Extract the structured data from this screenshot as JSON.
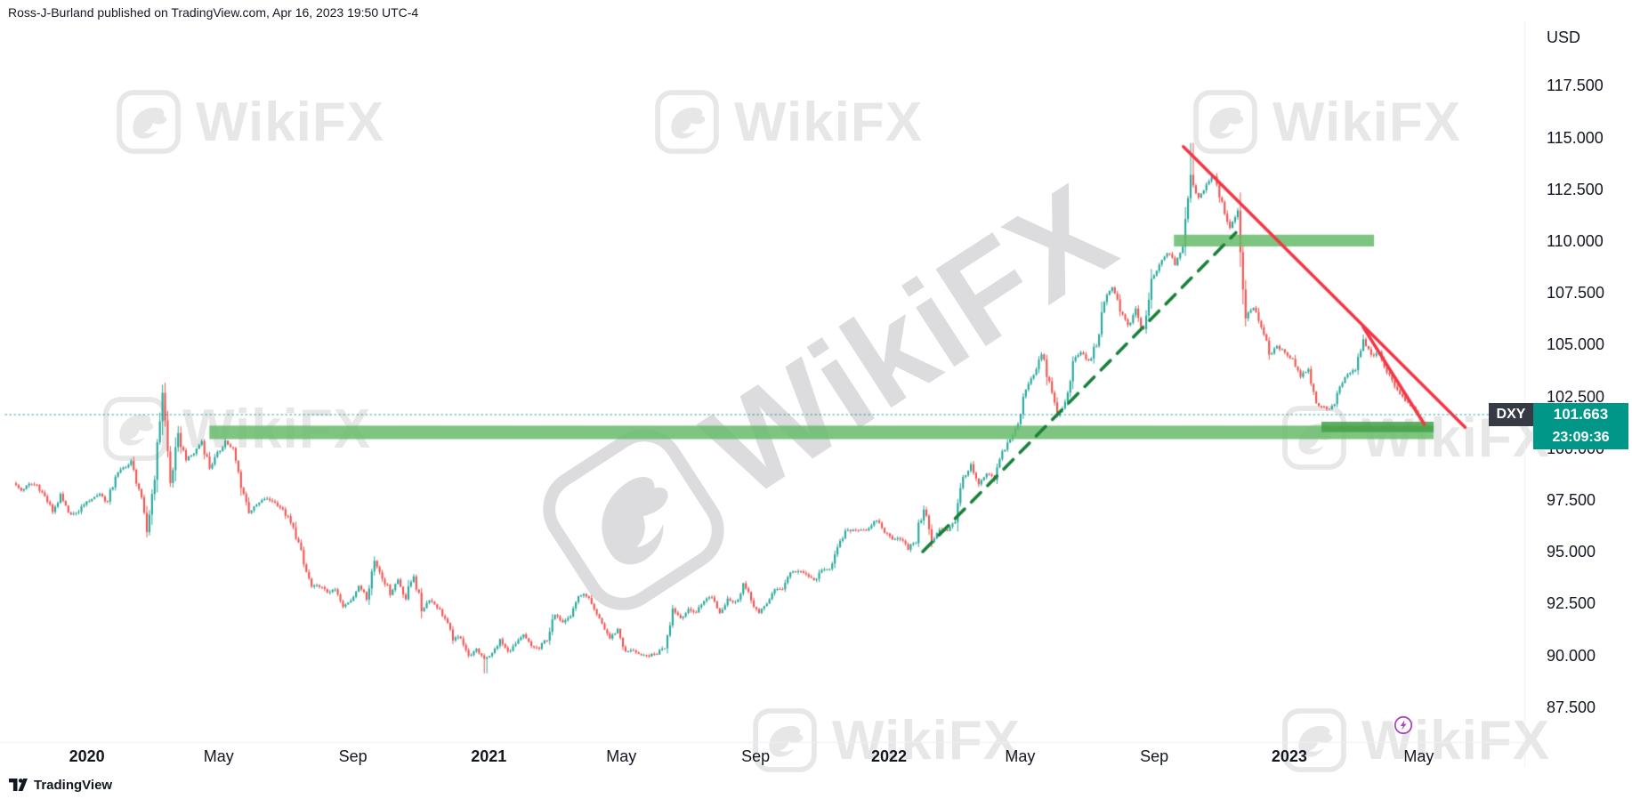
{
  "meta": {
    "attribution": "Ross-J-Burland published on TradingView.com, Apr 16, 2023 19:50 UTC-4",
    "watermark_text": "WikiFX"
  },
  "logo": {
    "label": "TradingView"
  },
  "chart_data": {
    "type": "candlestick",
    "symbol": "DXY",
    "currency_label": "USD",
    "last_price": "101.663",
    "countdown": "23:09:36",
    "timeframe_note": "weekly closes, Nov 2019 - Apr 2023 (approximate, read from chart)",
    "y_ticks": [
      {
        "label": "117.500",
        "value": 117.5
      },
      {
        "label": "115.000",
        "value": 115.0
      },
      {
        "label": "112.500",
        "value": 112.5
      },
      {
        "label": "110.000",
        "value": 110.0
      },
      {
        "label": "107.500",
        "value": 107.5
      },
      {
        "label": "105.000",
        "value": 105.0
      },
      {
        "label": "102.500",
        "value": 102.5
      },
      {
        "label": "100.000",
        "value": 100.0
      },
      {
        "label": "97.500",
        "value": 97.5
      },
      {
        "label": "95.000",
        "value": 95.0
      },
      {
        "label": "92.500",
        "value": 92.5
      },
      {
        "label": "90.000",
        "value": 90.0
      },
      {
        "label": "87.500",
        "value": 87.5
      }
    ],
    "x_ticks": [
      {
        "label": "2020",
        "week": 9.2,
        "major": true
      },
      {
        "label": "May",
        "week": 26.0,
        "major": false
      },
      {
        "label": "Sep",
        "week": 43.1,
        "major": false
      },
      {
        "label": "2021",
        "week": 60.4,
        "major": true
      },
      {
        "label": "May",
        "week": 77.3,
        "major": false
      },
      {
        "label": "Sep",
        "week": 94.4,
        "major": false
      },
      {
        "label": "2022",
        "week": 111.4,
        "major": true
      },
      {
        "label": "May",
        "week": 128.1,
        "major": false
      },
      {
        "label": "Sep",
        "week": 145.2,
        "major": false
      },
      {
        "label": "2023",
        "week": 162.4,
        "major": true
      },
      {
        "label": "May",
        "week": 178.9,
        "major": false
      }
    ],
    "weekly_closes": [
      98.35,
      98.0,
      98.3,
      98.27,
      97.7,
      97.0,
      97.7,
      96.9,
      96.85,
      97.35,
      97.6,
      97.85,
      97.4,
      98.7,
      99.1,
      99.3,
      98.1,
      96.0,
      98.75,
      102.8,
      98.35,
      100.6,
      99.5,
      99.8,
      100.4,
      99.1,
      99.75,
      100.4,
      99.9,
      98.3,
      96.95,
      97.3,
      97.6,
      97.5,
      97.2,
      96.65,
      95.9,
      94.4,
      93.35,
      93.4,
      93.1,
      93.2,
      92.35,
      92.75,
      93.35,
      93.0,
      94.6,
      93.85,
      93.05,
      93.7,
      92.8,
      94.0,
      92.2,
      92.75,
      92.4,
      91.8,
      90.8,
      90.98,
      90.0,
      90.3,
      89.9,
      90.1,
      90.77,
      90.2,
      90.58,
      91.0,
      90.48,
      90.36,
      90.9,
      91.98,
      91.68,
      92.0,
      92.9,
      93.0,
      92.16,
      91.55,
      90.86,
      91.28,
      90.2,
      90.3,
      90.0,
      90.03,
      90.13,
      90.55,
      92.3,
      91.85,
      92.23,
      92.13,
      92.7,
      92.9,
      92.1,
      92.8,
      92.52,
      93.5,
      92.7,
      92.03,
      92.58,
      93.2,
      93.3,
      94.07,
      94.1,
      93.95,
      93.64,
      94.12,
      94.3,
      95.13,
      96.03,
      96.1,
      96.12,
      96.1,
      96.6,
      96.0,
      95.67,
      95.72,
      95.17,
      95.64,
      97.27,
      95.48,
      96.08,
      96.1,
      96.6,
      98.65,
      99.12,
      98.23,
      98.8,
      98.57,
      99.84,
      100.5,
      101.12,
      102.96,
      103.66,
      104.56,
      103.15,
      101.64,
      102.16,
      104.19,
      104.7,
      104.19,
      105.11,
      106.97,
      107.99,
      106.73,
      105.9,
      106.62,
      105.63,
      108.1,
      108.84,
      109.53,
      108.97,
      109.76,
      113.19,
      112.12,
      112.8,
      113.31,
      111.88,
      110.75,
      111.28,
      106.29,
      106.93,
      105.96,
      104.55,
      104.93,
      104.7,
      104.31,
      103.52,
      103.9,
      102.2,
      101.99,
      101.92,
      102.99,
      103.58,
      103.88,
      105.21,
      104.53,
      104.58,
      103.71,
      103.12,
      102.51,
      102.09,
      101.663
    ],
    "annotations": {
      "current_price_line": 101.663,
      "peak_high": 114.78,
      "trough_low": 89.17,
      "support_zones": [
        {
          "name": "resistance-zone-110",
          "week_start": 147.7,
          "week_end": 173.2,
          "price_top": 110.35,
          "price_bottom": 109.78,
          "color": "#66bb6a",
          "alpha": 0.85
        },
        {
          "name": "support-zone-101",
          "week_start": 24.8,
          "week_end": 180.8,
          "price_top": 101.13,
          "price_bottom": 100.48,
          "color": "#66bb6a",
          "alpha": 0.85
        },
        {
          "name": "support-zone-101-recent",
          "week_start": 166.5,
          "week_end": 180.8,
          "price_top": 101.32,
          "price_bottom": 100.82,
          "color": "#43a047",
          "alpha": 0.85
        }
      ],
      "trend_lines": [
        {
          "name": "ascending-dashed-trendline",
          "week_start": 115.7,
          "price_start": 95.05,
          "week_end": 155.6,
          "price_end": 110.45,
          "color": "#188038",
          "width": 3.6,
          "dash": [
            15,
            11
          ]
        },
        {
          "name": "descending-resistance-line",
          "week_start": 148.9,
          "price_start": 114.6,
          "week_end": 184.8,
          "price_end": 101.05,
          "color": "#f23645",
          "width": 3.6,
          "dash": []
        },
        {
          "name": "steep-descending-line",
          "week_start": 171.8,
          "price_start": 105.9,
          "week_end": 179.6,
          "price_end": 101.2,
          "color": "#f23645",
          "width": 3.6,
          "dash": []
        }
      ]
    },
    "colors": {
      "candle_up": "#26a69a",
      "candle_down": "#ef5350",
      "price_tag": "#009688",
      "symbol_chip": "#363a45",
      "current_line": "#009688",
      "axis_text": "#131722"
    }
  }
}
